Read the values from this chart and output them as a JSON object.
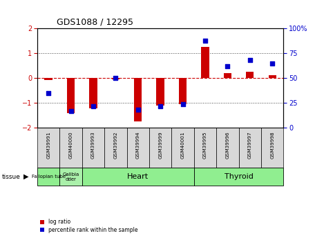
{
  "title": "GDS1088 / 12295",
  "samples": [
    "GSM39991",
    "GSM40000",
    "GSM39993",
    "GSM39992",
    "GSM39994",
    "GSM39999",
    "GSM40001",
    "GSM39995",
    "GSM39996",
    "GSM39997",
    "GSM39998"
  ],
  "log_ratio": [
    -0.08,
    -1.4,
    -1.2,
    -0.05,
    -1.75,
    -1.1,
    -1.05,
    1.25,
    0.2,
    0.25,
    0.12
  ],
  "percentile_rank": [
    35,
    17,
    22,
    50,
    18,
    22,
    24,
    88,
    62,
    68,
    65
  ],
  "tissue_configs": [
    {
      "label": "Fallopian tube",
      "start": 0,
      "end": 1,
      "color": "#90ee90",
      "fontsize": 5.0
    },
    {
      "label": "Gallbla\ndder",
      "start": 1,
      "end": 2,
      "color": "#aaf0aa",
      "fontsize": 5.0
    },
    {
      "label": "Heart",
      "start": 2,
      "end": 7,
      "color": "#90ee90",
      "fontsize": 8
    },
    {
      "label": "Thyroid",
      "start": 7,
      "end": 11,
      "color": "#90ee90",
      "fontsize": 8
    }
  ],
  "ylim_left": [
    -2,
    2
  ],
  "ylim_right": [
    0,
    100
  ],
  "yticks_left": [
    -2,
    -1,
    0,
    1,
    2
  ],
  "yticks_right": [
    0,
    25,
    50,
    75,
    100
  ],
  "bar_width": 0.35,
  "dot_size": 15,
  "red_color": "#cc0000",
  "blue_color": "#0000cc",
  "zero_line_color": "#cc0000",
  "dotted_line_color": "#444444",
  "sample_box_color": "#d8d8d8",
  "bg_color": "#ffffff"
}
